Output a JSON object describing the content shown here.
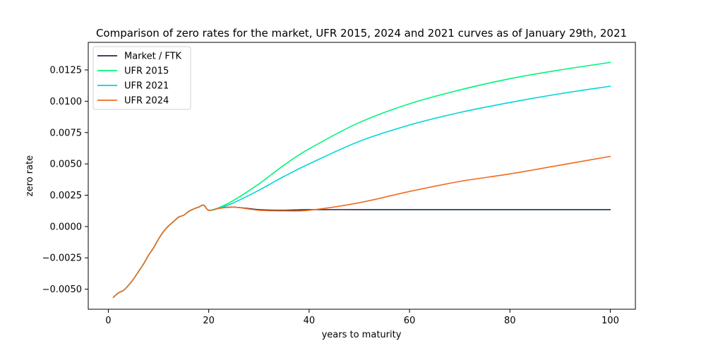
{
  "chart_data": {
    "type": "line",
    "title": "Comparison of zero rates for the market, UFR 2015, 2024 and 2021 curves as of January 29th, 2021",
    "xlabel": "years to maturity",
    "ylabel": "zero rate",
    "xlim": [
      -4,
      105
    ],
    "ylim": [
      -0.0066,
      0.0147
    ],
    "x_ticks": [
      0,
      20,
      40,
      60,
      80,
      100
    ],
    "x_tick_labels": [
      "0",
      "20",
      "40",
      "60",
      "80",
      "100"
    ],
    "y_ticks": [
      -0.005,
      -0.0025,
      0,
      0.0025,
      0.005,
      0.0075,
      0.01,
      0.0125
    ],
    "y_tick_labels": [
      "−0.0050",
      "−0.0025",
      "0.0000",
      "0.0025",
      "0.0050",
      "0.0075",
      "0.0100",
      "0.0125"
    ],
    "grid": false,
    "legend_position": "top-left",
    "series": [
      {
        "name": "Market / FTK",
        "color": "#1f2d45",
        "x": [
          1,
          2,
          3,
          4,
          5,
          6,
          7,
          8,
          9,
          10,
          11,
          12,
          13,
          14,
          15,
          16,
          17,
          18,
          19,
          20,
          22,
          25,
          30,
          35,
          40,
          50,
          60,
          70,
          80,
          90,
          100
        ],
        "y": [
          -0.00565,
          -0.0053,
          -0.0051,
          -0.0047,
          -0.0042,
          -0.0036,
          -0.003,
          -0.0023,
          -0.0017,
          -0.001,
          -0.0004,
          5e-05,
          0.0004,
          0.00075,
          0.0009,
          0.0012,
          0.0014,
          0.00155,
          0.0017,
          0.0013,
          0.00145,
          0.00155,
          0.00135,
          0.0013,
          0.00135,
          0.00135,
          0.00135,
          0.00135,
          0.00135,
          0.00135,
          0.00135
        ]
      },
      {
        "name": "UFR 2015",
        "color": "#00f57a",
        "x": [
          1,
          2,
          3,
          4,
          5,
          6,
          7,
          8,
          9,
          10,
          11,
          12,
          13,
          14,
          15,
          16,
          17,
          18,
          19,
          20,
          22,
          25,
          30,
          35,
          40,
          50,
          60,
          70,
          80,
          90,
          100
        ],
        "y": [
          -0.00565,
          -0.0053,
          -0.0051,
          -0.0047,
          -0.0042,
          -0.0036,
          -0.003,
          -0.0023,
          -0.0017,
          -0.001,
          -0.0004,
          5e-05,
          0.0004,
          0.00075,
          0.0009,
          0.0012,
          0.0014,
          0.00155,
          0.0017,
          0.0013,
          0.0015,
          0.0021,
          0.0034,
          0.0049,
          0.0062,
          0.0083,
          0.0098,
          0.0109,
          0.0118,
          0.0125,
          0.0131
        ]
      },
      {
        "name": "UFR 2021",
        "color": "#00d6d6",
        "x": [
          1,
          2,
          3,
          4,
          5,
          6,
          7,
          8,
          9,
          10,
          11,
          12,
          13,
          14,
          15,
          16,
          17,
          18,
          19,
          20,
          22,
          25,
          30,
          35,
          40,
          50,
          60,
          70,
          80,
          90,
          100
        ],
        "y": [
          -0.00565,
          -0.0053,
          -0.0051,
          -0.0047,
          -0.0042,
          -0.0036,
          -0.003,
          -0.0023,
          -0.0017,
          -0.001,
          -0.0004,
          5e-05,
          0.0004,
          0.00075,
          0.0009,
          0.0012,
          0.0014,
          0.00155,
          0.0017,
          0.0013,
          0.00145,
          0.0019,
          0.0029,
          0.004,
          0.005,
          0.0068,
          0.0081,
          0.0091,
          0.0099,
          0.0106,
          0.0112
        ]
      },
      {
        "name": "UFR 2024",
        "color": "#f26a1b",
        "x": [
          1,
          2,
          3,
          4,
          5,
          6,
          7,
          8,
          9,
          10,
          11,
          12,
          13,
          14,
          15,
          16,
          17,
          18,
          19,
          20,
          22,
          25,
          30,
          35,
          40,
          50,
          60,
          70,
          80,
          90,
          100
        ],
        "y": [
          -0.00565,
          -0.0053,
          -0.0051,
          -0.0047,
          -0.0042,
          -0.0036,
          -0.003,
          -0.0023,
          -0.0017,
          -0.001,
          -0.0004,
          5e-05,
          0.0004,
          0.00075,
          0.0009,
          0.0012,
          0.0014,
          0.00155,
          0.0017,
          0.0013,
          0.00145,
          0.00155,
          0.0013,
          0.00125,
          0.0013,
          0.0019,
          0.0028,
          0.0036,
          0.0042,
          0.0049,
          0.0056
        ]
      }
    ]
  }
}
